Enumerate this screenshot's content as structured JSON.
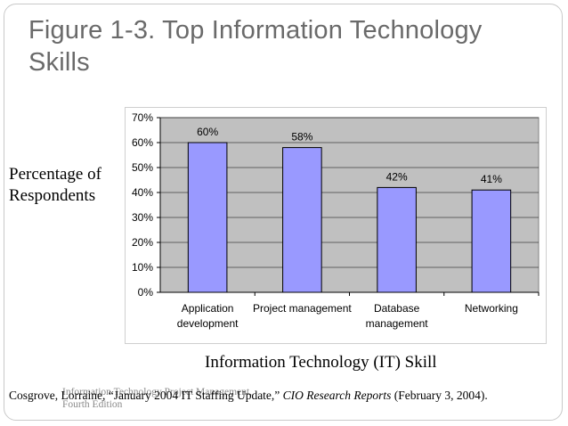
{
  "slide": {
    "title_line1": "Figure 1-3. Top Information Technology",
    "title_line2": "Skills"
  },
  "footer": {
    "course_line1": "Information Technology Project Management,",
    "course_line2": "Fourth Edition",
    "citation_pre": "Cosgrove, Lorraine, “January 2004 IT Staffing Update,” ",
    "citation_italic": "CIO Research Reports",
    "citation_post": " (February 3, 2004)."
  },
  "colors": {
    "bar_fill": "#9999ff",
    "plot_background": "#c0c0c0",
    "title_text": "#6a6a6a"
  },
  "chart_data": {
    "type": "bar",
    "ylabel_line1": "Percentage of",
    "ylabel_line2": "Respondents",
    "xlabel": "Information Technology (IT) Skill",
    "categories": [
      [
        "Application",
        "development"
      ],
      [
        "Project management"
      ],
      [
        "Database",
        "management"
      ],
      [
        "Networking"
      ]
    ],
    "values": [
      60,
      58,
      42,
      41
    ],
    "value_labels": [
      "60%",
      "58%",
      "42%",
      "41%"
    ],
    "ylim": [
      0,
      70
    ],
    "yticks": [
      0,
      10,
      20,
      30,
      40,
      50,
      60,
      70
    ],
    "ytick_labels": [
      "0%",
      "10%",
      "20%",
      "30%",
      "40%",
      "50%",
      "60%",
      "70%"
    ],
    "grid": true,
    "legend": "none"
  }
}
